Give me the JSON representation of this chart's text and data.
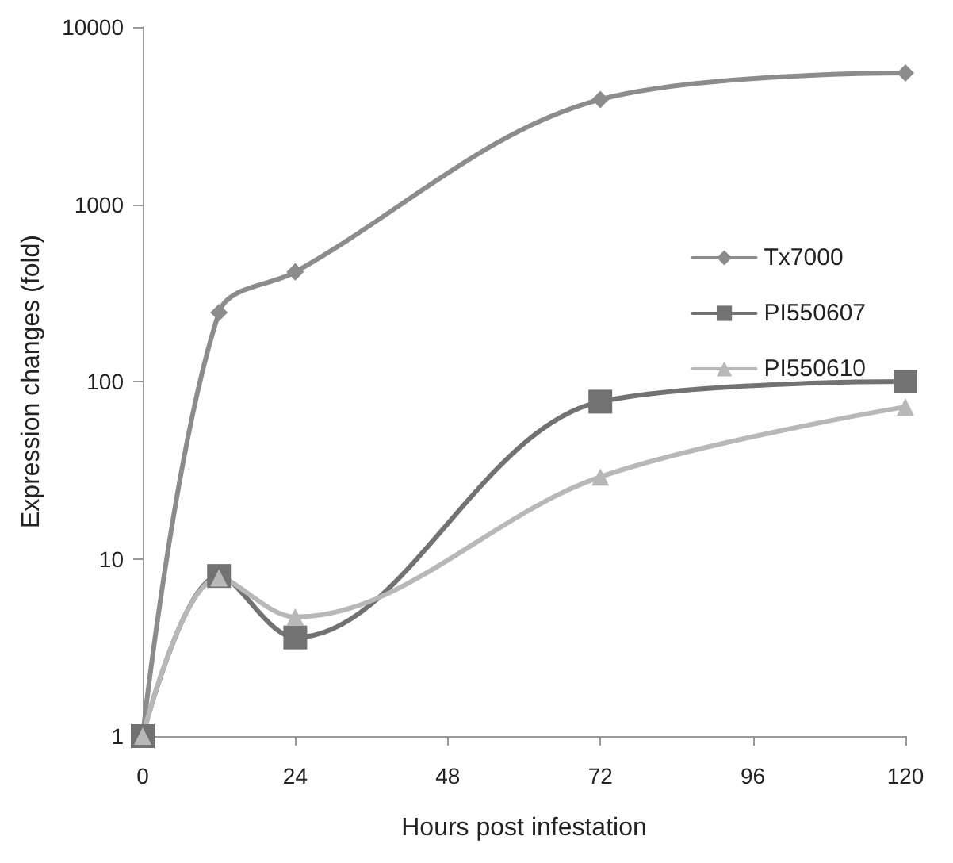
{
  "chart_data": {
    "type": "line",
    "xlabel": "Hours post infestation",
    "ylabel": "Expression changes (fold)",
    "x": [
      0,
      12,
      24,
      72,
      120
    ],
    "series": [
      {
        "name": "Tx7000",
        "color": "#8c8c8c",
        "marker": "diamond",
        "values": [
          1,
          245,
          415,
          3900,
          5500
        ]
      },
      {
        "name": "PI550607",
        "color": "#727272",
        "marker": "square",
        "values": [
          1,
          8,
          3.6,
          77,
          100
        ]
      },
      {
        "name": "PI550610",
        "color": "#b8b8b8",
        "marker": "triangle",
        "values": [
          1,
          7.8,
          4.7,
          29,
          72
        ]
      }
    ],
    "xlim": [
      0,
      120
    ],
    "xticks": [
      0,
      24,
      48,
      72,
      96,
      120
    ],
    "ylim": [
      1,
      10000
    ],
    "yticks": [
      1,
      10,
      100,
      1000,
      10000
    ],
    "log": true,
    "grid": false,
    "legend": "right",
    "line_style": "solid"
  }
}
